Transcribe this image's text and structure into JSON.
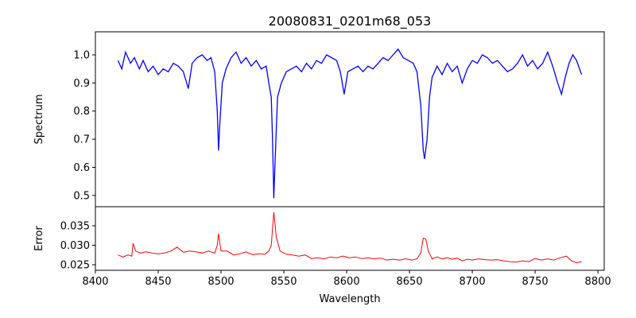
{
  "chart_data": [
    {
      "type": "line",
      "title": "20080831_0201m68_053",
      "xlabel": "",
      "ylabel": "Spectrum",
      "xlim": [
        8400,
        8805
      ],
      "ylim": [
        0.46,
        1.082
      ],
      "yticks": [
        "0.5",
        "0.6",
        "0.7",
        "0.8",
        "0.9",
        "1.0"
      ],
      "color": "#0000ff",
      "x": [
        8418,
        8421,
        8424,
        8428,
        8431,
        8435,
        8438,
        8442,
        8446,
        8450,
        8454,
        8458,
        8462,
        8466,
        8470,
        8474,
        8477,
        8481,
        8485,
        8489,
        8492,
        8495,
        8497,
        8498,
        8499,
        8501,
        8504,
        8508,
        8512,
        8516,
        8520,
        8524,
        8528,
        8532,
        8536,
        8538,
        8540,
        8541,
        8542,
        8543,
        8545,
        8548,
        8552,
        8556,
        8560,
        8564,
        8568,
        8572,
        8576,
        8580,
        8584,
        8588,
        8592,
        8595,
        8598,
        8601,
        8605,
        8609,
        8613,
        8617,
        8621,
        8625,
        8629,
        8633,
        8637,
        8641,
        8645,
        8649,
        8653,
        8656,
        8659,
        8661,
        8662,
        8664,
        8666,
        8668,
        8672,
        8676,
        8680,
        8684,
        8688,
        8692,
        8696,
        8700,
        8704,
        8708,
        8712,
        8716,
        8720,
        8724,
        8728,
        8732,
        8736,
        8740,
        8744,
        8748,
        8752,
        8756,
        8760,
        8764,
        8768,
        8771,
        8774,
        8777,
        8780,
        8783,
        8787
      ],
      "y": [
        0.98,
        0.95,
        1.01,
        0.97,
        0.99,
        0.95,
        0.98,
        0.94,
        0.96,
        0.93,
        0.95,
        0.94,
        0.97,
        0.96,
        0.94,
        0.88,
        0.97,
        0.99,
        1.0,
        0.98,
        0.99,
        0.94,
        0.8,
        0.66,
        0.75,
        0.9,
        0.95,
        0.99,
        1.01,
        0.97,
        0.99,
        0.96,
        0.98,
        0.95,
        0.96,
        0.9,
        0.85,
        0.7,
        0.49,
        0.62,
        0.85,
        0.9,
        0.94,
        0.95,
        0.96,
        0.94,
        0.97,
        0.95,
        0.98,
        0.97,
        1.0,
        0.99,
        0.98,
        0.94,
        0.86,
        0.94,
        0.95,
        0.96,
        0.94,
        0.96,
        0.95,
        0.97,
        0.99,
        0.98,
        1.0,
        1.02,
        0.99,
        0.98,
        0.97,
        0.94,
        0.82,
        0.66,
        0.63,
        0.7,
        0.85,
        0.92,
        0.96,
        0.93,
        0.97,
        0.94,
        0.96,
        0.9,
        0.95,
        0.98,
        0.97,
        1.0,
        0.99,
        0.97,
        0.98,
        0.96,
        0.94,
        0.95,
        0.97,
        1.0,
        0.96,
        0.98,
        0.95,
        0.97,
        1.01,
        0.96,
        0.9,
        0.86,
        0.92,
        0.97,
        1.0,
        0.98,
        0.93
      ]
    },
    {
      "type": "line",
      "xlabel": "Wavelength",
      "ylabel": "Error",
      "xlim": [
        8400,
        8805
      ],
      "ylim": [
        0.02357,
        0.0399
      ],
      "xticks": [
        "8400",
        "8450",
        "8500",
        "8550",
        "8600",
        "8650",
        "8700",
        "8750",
        "8800"
      ],
      "yticks": [
        "0.025",
        "0.030",
        "0.035"
      ],
      "color": "#ff0000",
      "x": [
        8418,
        8422,
        8426,
        8429,
        8430,
        8432,
        8436,
        8440,
        8445,
        8450,
        8455,
        8460,
        8465,
        8470,
        8475,
        8480,
        8485,
        8490,
        8495,
        8497,
        8498,
        8500,
        8505,
        8510,
        8515,
        8520,
        8525,
        8530,
        8535,
        8538,
        8540,
        8542,
        8544,
        8547,
        8552,
        8557,
        8562,
        8567,
        8572,
        8577,
        8582,
        8587,
        8592,
        8597,
        8602,
        8607,
        8612,
        8617,
        8622,
        8627,
        8632,
        8637,
        8642,
        8647,
        8652,
        8656,
        8659,
        8661,
        8663,
        8665,
        8668,
        8672,
        8676,
        8680,
        8684,
        8688,
        8692,
        8696,
        8700,
        8705,
        8710,
        8715,
        8720,
        8725,
        8730,
        8735,
        8740,
        8745,
        8750,
        8755,
        8760,
        8765,
        8770,
        8775,
        8779,
        8783,
        8787
      ],
      "y": [
        0.0275,
        0.027,
        0.0275,
        0.0272,
        0.0305,
        0.0285,
        0.028,
        0.0283,
        0.028,
        0.0278,
        0.028,
        0.0285,
        0.0295,
        0.0282,
        0.0285,
        0.0283,
        0.028,
        0.0285,
        0.028,
        0.03,
        0.033,
        0.0285,
        0.0285,
        0.0275,
        0.0278,
        0.0283,
        0.0276,
        0.0278,
        0.0277,
        0.0285,
        0.03,
        0.0385,
        0.032,
        0.0285,
        0.0277,
        0.0275,
        0.0272,
        0.0275,
        0.0266,
        0.0268,
        0.0265,
        0.027,
        0.0268,
        0.0272,
        0.0268,
        0.027,
        0.0266,
        0.0268,
        0.0265,
        0.0267,
        0.0262,
        0.0264,
        0.0262,
        0.0265,
        0.0262,
        0.0265,
        0.028,
        0.0318,
        0.0316,
        0.0285,
        0.0265,
        0.027,
        0.0265,
        0.0268,
        0.0264,
        0.0267,
        0.026,
        0.0264,
        0.0262,
        0.0265,
        0.0263,
        0.0262,
        0.0263,
        0.026,
        0.0258,
        0.0257,
        0.026,
        0.0258,
        0.0266,
        0.0262,
        0.0265,
        0.0262,
        0.0268,
        0.0272,
        0.026,
        0.0255,
        0.0258
      ]
    }
  ]
}
